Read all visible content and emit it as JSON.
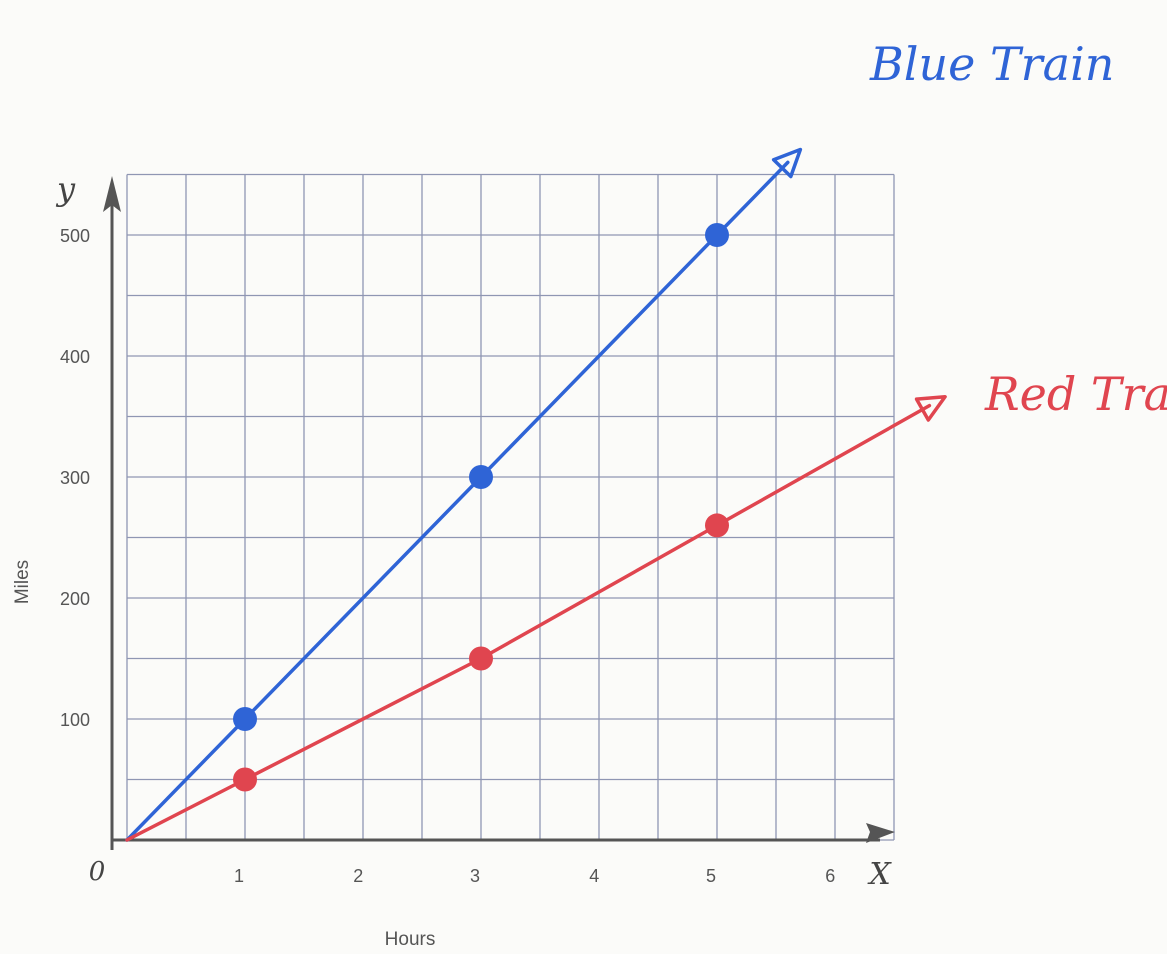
{
  "chart_data": {
    "type": "line",
    "xlabel": "Hours",
    "ylabel": "Miles",
    "x_axis_letter": "X",
    "y_axis_letter": "y",
    "origin_label": "0",
    "xlim": [
      0,
      6.5
    ],
    "ylim": [
      0,
      550
    ],
    "x_ticks": [
      "1",
      "2",
      "3",
      "4",
      "5",
      "6"
    ],
    "y_ticks": [
      "100",
      "200",
      "300",
      "400",
      "500"
    ],
    "grid": true,
    "series": [
      {
        "name": "Blue Train",
        "color": "#2f64d6",
        "points": [
          {
            "x": 1,
            "y": 100
          },
          {
            "x": 3,
            "y": 300
          },
          {
            "x": 5,
            "y": 500
          }
        ]
      },
      {
        "name": "Red Train",
        "color": "#e0454f",
        "points": [
          {
            "x": 1,
            "y": 50
          },
          {
            "x": 3,
            "y": 150
          },
          {
            "x": 5,
            "y": 260
          }
        ]
      }
    ]
  }
}
